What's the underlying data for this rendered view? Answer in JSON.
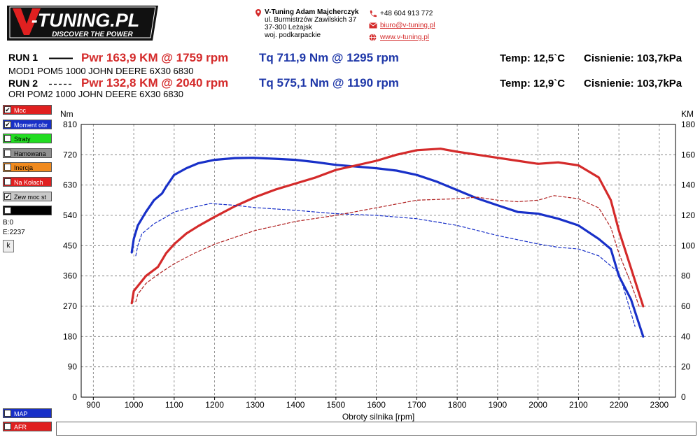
{
  "header": {
    "logo_text": "V-TUNING.PL",
    "logo_tagline": "DISCOVER THE POWER",
    "company": "V-Tuning Adam Majcherczyk",
    "street": "ul. Burmistrzów Zawilskich 37",
    "city": "37-300 Leżajsk",
    "region": "woj. podkarpackie",
    "phone": "+48 604 913 772",
    "email": "biuro@v-tuning.pl",
    "website": "www.v-tuning.pl"
  },
  "runs": [
    {
      "label": "RUN 1",
      "pwr": "Pwr  163,9 KM @ 1759 rpm",
      "tq": "Tq 711,9 Nm @ 1295 rpm",
      "temp": "Temp: 12,5`C",
      "pressure": "Cisnienie: 103,7kPa",
      "desc": "MOD1 POM5 1000 JOHN DEERE 6X30 6830"
    },
    {
      "label": "RUN 2",
      "pwr": "Pwr  132,8 KM @ 2040 rpm",
      "tq": "Tq 575,1 Nm @ 1190 rpm",
      "temp": "Temp: 12,9`C",
      "pressure": "Cisnienie: 103,7kPa",
      "desc": "ORI POM2 1000 JOHN DEERE 6X30 6830"
    }
  ],
  "legend": [
    {
      "label": "Moc",
      "color": "#e02020",
      "checked": true
    },
    {
      "label": "Moment obr",
      "color": "#1830c8",
      "checked": true
    },
    {
      "label": "Straty",
      "color": "#22dd22",
      "checked": false
    },
    {
      "label": "Hamowana",
      "color": "#909090",
      "checked": false
    },
    {
      "label": "Inercja",
      "color": "#f08a1e",
      "checked": false
    },
    {
      "label": "Na Kołach",
      "color": "#e02020",
      "checked": false
    },
    {
      "label": "Zew moc st",
      "color": "#c8c8c8",
      "checked": true
    },
    {
      "label": "",
      "color": "#000000",
      "checked": false
    }
  ],
  "stats": {
    "b": "B:0",
    "e": "E:2237",
    "button": "k"
  },
  "bottom_legend": [
    {
      "label": "MAP",
      "color": "#1830c8"
    },
    {
      "label": "AFR",
      "color": "#e02020"
    }
  ],
  "chart_data": {
    "type": "line",
    "xlabel": "Obroty silnika [rpm]",
    "ylabel_left": "Nm",
    "ylabel_right": "KM",
    "xlim": [
      870,
      2340
    ],
    "ylim_left": [
      0,
      810
    ],
    "ylim_right": [
      0,
      180
    ],
    "x_ticks": [
      900,
      1000,
      1100,
      1200,
      1300,
      1400,
      1500,
      1600,
      1700,
      1800,
      1900,
      2000,
      2100,
      2200,
      2300
    ],
    "y_ticks_left": [
      0,
      90,
      180,
      270,
      360,
      450,
      540,
      630,
      720,
      810
    ],
    "y_ticks_right": [
      0,
      20,
      40,
      60,
      80,
      100,
      120,
      140,
      160,
      180
    ],
    "grid": true,
    "series": [
      {
        "name": "RUN 1 Tq",
        "axis": "left",
        "color": "#1830c8",
        "style": "solid",
        "x": [
          995,
          1000,
          1010,
          1030,
          1050,
          1070,
          1080,
          1100,
          1130,
          1160,
          1200,
          1250,
          1295,
          1350,
          1400,
          1450,
          1500,
          1550,
          1600,
          1650,
          1700,
          1750,
          1800,
          1850,
          1900,
          1950,
          2000,
          2050,
          2100,
          2150,
          2180,
          2200,
          2230,
          2260
        ],
        "y": [
          430,
          470,
          510,
          550,
          585,
          605,
          625,
          660,
          680,
          695,
          705,
          710,
          711,
          708,
          705,
          698,
          690,
          685,
          680,
          673,
          660,
          640,
          615,
          590,
          570,
          550,
          545,
          530,
          510,
          470,
          440,
          360,
          290,
          180
        ]
      },
      {
        "name": "RUN 1 Pwr",
        "axis": "right",
        "color": "#d42a2a",
        "style": "solid",
        "x": [
          995,
          1000,
          1030,
          1060,
          1080,
          1100,
          1130,
          1160,
          1200,
          1250,
          1300,
          1350,
          1400,
          1450,
          1500,
          1550,
          1600,
          1650,
          1700,
          1759,
          1800,
          1850,
          1900,
          1950,
          2000,
          2050,
          2100,
          2150,
          2180,
          2200,
          2230,
          2260
        ],
        "y": [
          62,
          70,
          80,
          86,
          95,
          101,
          108,
          113,
          119,
          126,
          132,
          137,
          141,
          145,
          150,
          153,
          156,
          160,
          163,
          164,
          162,
          160,
          158,
          156,
          154,
          155,
          153,
          145,
          130,
          110,
          85,
          60
        ]
      },
      {
        "name": "RUN 2 Tq",
        "axis": "left",
        "color": "#1830c8",
        "style": "dashed",
        "x": [
          1005,
          1010,
          1020,
          1050,
          1080,
          1100,
          1150,
          1190,
          1250,
          1300,
          1400,
          1500,
          1600,
          1700,
          1800,
          1900,
          2000,
          2050,
          2100,
          2150,
          2200,
          2220,
          2240
        ],
        "y": [
          420,
          450,
          485,
          515,
          535,
          550,
          565,
          575,
          570,
          563,
          555,
          545,
          540,
          530,
          510,
          480,
          455,
          445,
          440,
          420,
          370,
          290,
          210
        ]
      },
      {
        "name": "RUN 2 Pwr",
        "axis": "right",
        "color": "#b02020",
        "style": "dashed",
        "x": [
          1005,
          1010,
          1030,
          1060,
          1100,
          1150,
          1200,
          1300,
          1400,
          1500,
          1600,
          1700,
          1800,
          1850,
          1900,
          1950,
          2000,
          2040,
          2100,
          2150,
          2180,
          2200,
          2230,
          2250
        ],
        "y": [
          63,
          68,
          75,
          81,
          88,
          95,
          101,
          110,
          116,
          120,
          125,
          130,
          131,
          132,
          130,
          129,
          130,
          133,
          131,
          125,
          112,
          95,
          75,
          60
        ]
      }
    ]
  }
}
